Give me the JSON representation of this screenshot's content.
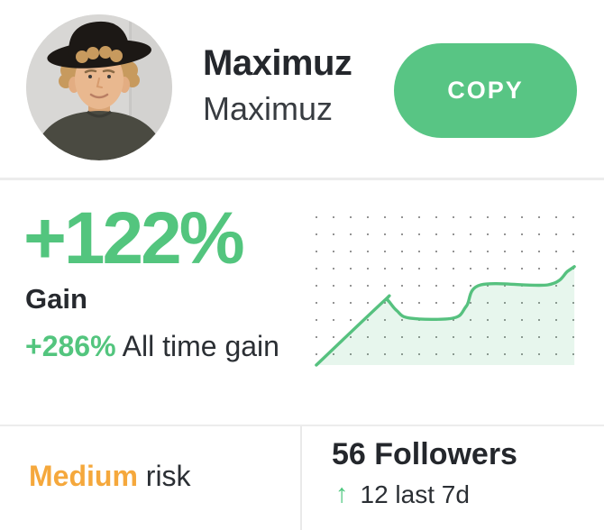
{
  "header": {
    "name": "Maximuz",
    "username": "Maximuz",
    "copy_label": "COPY"
  },
  "gain": {
    "value": "+122%",
    "label": "Gain",
    "alltime_value": "+286%",
    "alltime_label": "All time gain"
  },
  "risk": {
    "level": "Medium",
    "label": "risk"
  },
  "followers": {
    "count_text": "56 Followers",
    "change_arrow": "↑",
    "change_text": "12 last 7d"
  },
  "icons": {
    "avatar": "portrait-photo-man-curly-hair-black-hat",
    "up_arrow": "up-arrow-icon"
  },
  "colors": {
    "accent_green": "#53c57e",
    "button_green": "#58c584",
    "risk_orange": "#f5a83c",
    "text_dark": "#26292e",
    "divider": "#ececec",
    "chart_line": "#56c17f",
    "chart_fill": "rgba(86,193,127,0.14)",
    "chart_dot": "#666666"
  },
  "chart_data": {
    "type": "area",
    "title": "",
    "xlabel": "",
    "ylabel": "",
    "legend": false,
    "grid": "dot-matrix",
    "x_percent": [
      1,
      26.5,
      28,
      31.5,
      36.5,
      53,
      58,
      63.5,
      89,
      96.5,
      99
    ],
    "values_percent": [
      0,
      42,
      43,
      36,
      31,
      31,
      39,
      53,
      53,
      62,
      65
    ],
    "ylim": [
      0,
      100
    ],
    "line_color": "#56c17f",
    "fill_color": "rgba(86,193,127,0.14)"
  }
}
